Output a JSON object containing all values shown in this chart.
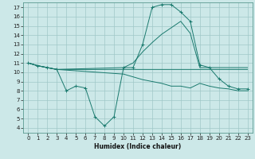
{
  "xlabel": "Humidex (Indice chaleur)",
  "bg_color": "#cce8e8",
  "line_color": "#1a7a6e",
  "xlim": [
    -0.5,
    23.5
  ],
  "ylim": [
    3.5,
    17.5
  ],
  "xticks": [
    0,
    1,
    2,
    3,
    4,
    5,
    6,
    7,
    8,
    9,
    10,
    11,
    12,
    13,
    14,
    15,
    16,
    17,
    18,
    19,
    20,
    21,
    22,
    23
  ],
  "yticks": [
    4,
    5,
    6,
    7,
    8,
    9,
    10,
    11,
    12,
    13,
    14,
    15,
    16,
    17
  ],
  "series1_x": [
    0,
    1,
    2,
    3,
    4,
    5,
    6,
    7,
    8,
    9,
    10,
    11,
    12,
    13,
    14,
    15,
    16,
    17,
    18,
    19,
    20,
    21,
    22,
    23
  ],
  "series1_y": [
    11,
    10.7,
    10.5,
    10.3,
    8.0,
    8.5,
    8.3,
    5.2,
    4.2,
    5.2,
    10.5,
    10.5,
    13.0,
    17.0,
    17.3,
    17.3,
    16.5,
    15.5,
    10.8,
    10.5,
    9.3,
    8.5,
    8.2,
    8.2
  ],
  "series2_x": [
    0,
    1,
    2,
    3,
    10,
    11,
    12,
    13,
    14,
    15,
    16,
    17,
    18,
    19,
    20,
    21,
    22,
    23
  ],
  "series2_y": [
    11,
    10.7,
    10.5,
    10.3,
    10.5,
    11.0,
    12.2,
    13.2,
    14.1,
    14.8,
    15.5,
    14.2,
    10.5,
    10.5,
    10.5,
    10.5,
    10.5,
    10.5
  ],
  "series3_x": [
    0,
    1,
    2,
    3,
    10,
    11,
    12,
    13,
    14,
    15,
    16,
    17,
    18,
    19,
    20,
    21,
    22,
    23
  ],
  "series3_y": [
    11,
    10.7,
    10.5,
    10.3,
    10.3,
    10.3,
    10.3,
    10.3,
    10.3,
    10.3,
    10.3,
    10.3,
    10.3,
    10.3,
    10.3,
    10.3,
    10.3,
    10.3
  ],
  "series4_x": [
    0,
    1,
    2,
    3,
    10,
    11,
    12,
    13,
    14,
    15,
    16,
    17,
    18,
    19,
    20,
    21,
    22,
    23
  ],
  "series4_y": [
    11,
    10.7,
    10.5,
    10.3,
    9.8,
    9.5,
    9.2,
    9.0,
    8.8,
    8.5,
    8.5,
    8.3,
    8.8,
    8.5,
    8.3,
    8.2,
    8.0,
    8.0
  ],
  "grid_color": "#a0c8c8",
  "tick_fontsize": 5,
  "xlabel_fontsize": 5.5
}
